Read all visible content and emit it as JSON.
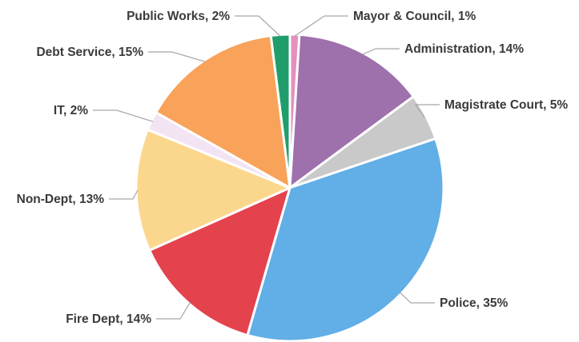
{
  "chart_data": {
    "type": "pie",
    "title": "",
    "slices": [
      {
        "label": "Mayor & Council, 1%",
        "name": "Mayor & Council",
        "value": 1,
        "color": "#e58fbe"
      },
      {
        "label": "Administration, 14%",
        "name": "Administration",
        "value": 14,
        "color": "#9e70ac"
      },
      {
        "label": "Magistrate Court, 5%",
        "name": "Magistrate Court",
        "value": 5,
        "color": "#c9c9c9"
      },
      {
        "label": "Police, 35%",
        "name": "Police",
        "value": 35,
        "color": "#62aee6"
      },
      {
        "label": "Fire Dept, 14%",
        "name": "Fire Dept",
        "value": 14,
        "color": "#e4424d"
      },
      {
        "label": "Non-Dept, 13%",
        "name": "Non-Dept",
        "value": 13,
        "color": "#fbd78d"
      },
      {
        "label": "IT, 2%",
        "name": "IT",
        "value": 2,
        "color": "#f3e4f4"
      },
      {
        "label": "Debt Service, 15%",
        "name": "Debt Service",
        "value": 15,
        "color": "#f9a25a"
      },
      {
        "label": "Public Works, 2%",
        "name": "Public Works",
        "value": 2,
        "color": "#1f9e6c"
      }
    ]
  }
}
